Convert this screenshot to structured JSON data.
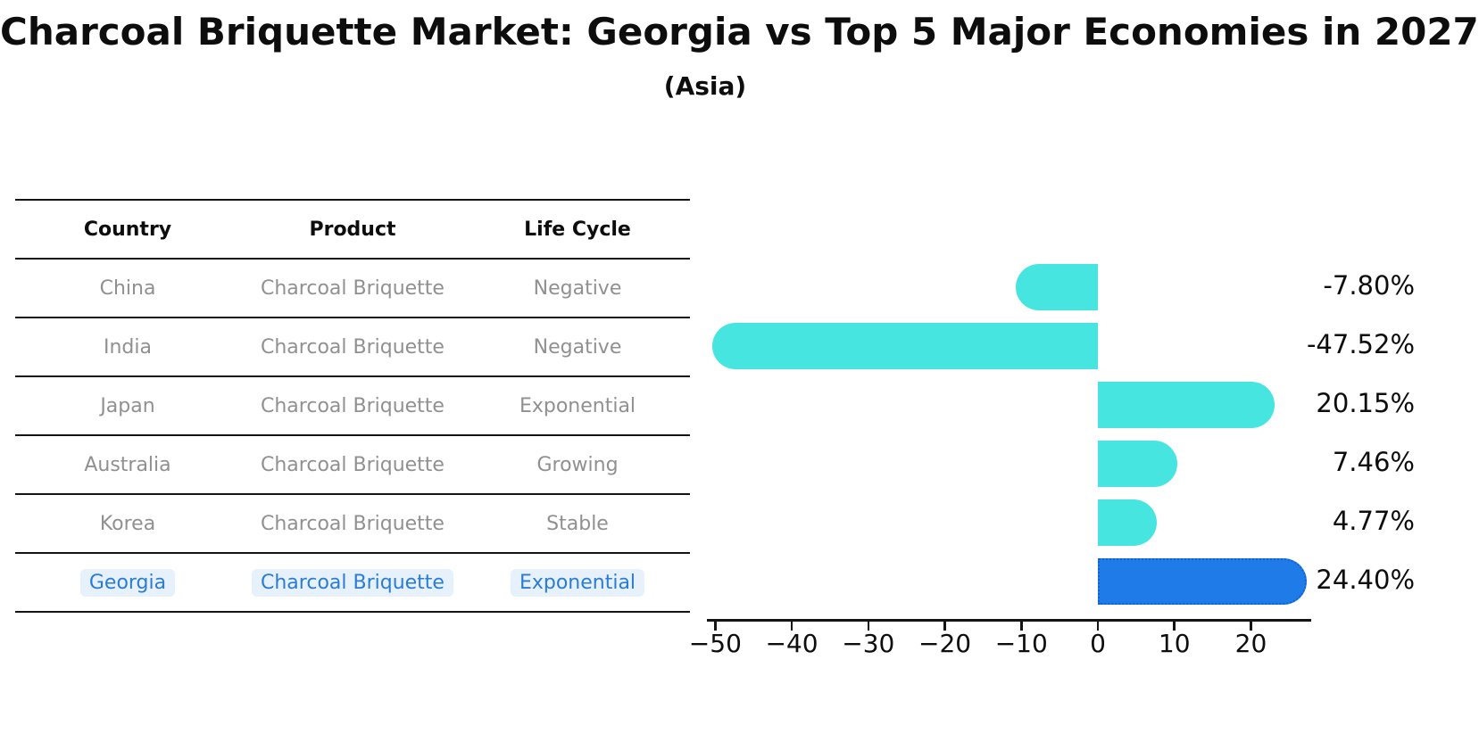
{
  "title": "Charcoal Briquette Market: Georgia vs Top 5 Major Economies in 2027",
  "subtitle": "(Asia)",
  "table": {
    "headers": [
      "Country",
      "Product",
      "Life Cycle"
    ],
    "rows": [
      {
        "country": "China",
        "product": "Charcoal Briquette",
        "life_cycle": "Negative",
        "highlight": false
      },
      {
        "country": "India",
        "product": "Charcoal Briquette",
        "life_cycle": "Negative",
        "highlight": false
      },
      {
        "country": "Japan",
        "product": "Charcoal Briquette",
        "life_cycle": "Exponential",
        "highlight": false
      },
      {
        "country": "Australia",
        "product": "Charcoal Briquette",
        "life_cycle": "Growing",
        "highlight": false
      },
      {
        "country": "Korea",
        "product": "Charcoal Briquette",
        "life_cycle": "Stable",
        "highlight": false
      },
      {
        "country": "Georgia",
        "product": "Charcoal Briquette",
        "life_cycle": "Exponential",
        "highlight": true
      }
    ]
  },
  "chart_data": {
    "type": "bar",
    "orientation": "horizontal",
    "title": "Charcoal Briquette Market: Georgia vs Top 5 Major Economies in 2027",
    "subtitle": "(Asia)",
    "categories": [
      "China",
      "India",
      "Japan",
      "Australia",
      "Korea",
      "Georgia"
    ],
    "values": [
      -7.8,
      -47.52,
      20.15,
      7.46,
      4.77,
      24.4
    ],
    "value_labels": [
      "-7.80%",
      "-47.52%",
      "20.15%",
      "7.46%",
      "4.77%",
      "24.40%"
    ],
    "x_ticks": [
      "−50",
      "−40",
      "−30",
      "−20",
      "−10",
      "0",
      "10",
      "20"
    ],
    "x_tick_values": [
      -50,
      -40,
      -30,
      -20,
      -10,
      0,
      10,
      20
    ],
    "xlim": [
      -51.1,
      27.9
    ],
    "xlabel": "",
    "ylabel": "",
    "grid": false,
    "legend": null,
    "bar_color": "#46e5e0",
    "highlight_index": 5,
    "highlight_bar_color": "#1e7be8",
    "highlight_border_color": "#1063cf",
    "highlight_text_color": "#2a7cd4"
  }
}
